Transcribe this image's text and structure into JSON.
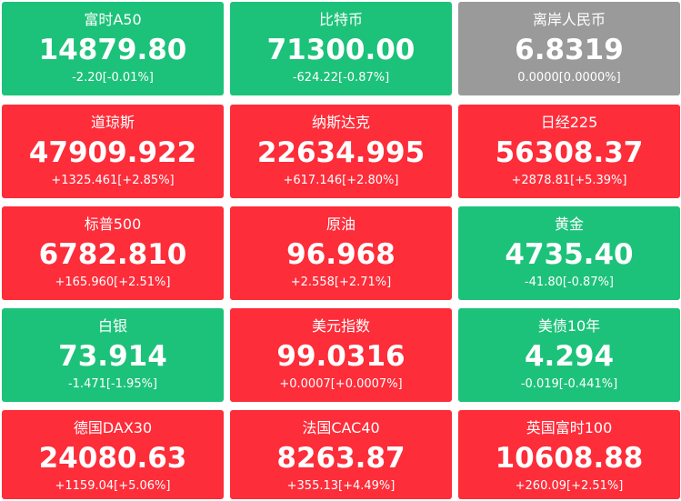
{
  "tiles": [
    {
      "name": "富时A50",
      "price": "14879.80",
      "change": "-2.20[-0.01%]",
      "trend": "down"
    },
    {
      "name": "比特币",
      "price": "71300.00",
      "change": "-624.22[-0.87%]",
      "trend": "down"
    },
    {
      "name": "离岸人民币",
      "price": "6.8319",
      "change": "0.0000[0.0000%]",
      "trend": "flat"
    },
    {
      "name": "道琼斯",
      "price": "47909.922",
      "change": "+1325.461[+2.85%]",
      "trend": "up"
    },
    {
      "name": "纳斯达克",
      "price": "22634.995",
      "change": "+617.146[+2.80%]",
      "trend": "up"
    },
    {
      "name": "日经225",
      "price": "56308.37",
      "change": "+2878.81[+5.39%]",
      "trend": "up"
    },
    {
      "name": "标普500",
      "price": "6782.810",
      "change": "+165.960[+2.51%]",
      "trend": "up"
    },
    {
      "name": "原油",
      "price": "96.968",
      "change": "+2.558[+2.71%]",
      "trend": "up"
    },
    {
      "name": "黄金",
      "price": "4735.40",
      "change": "-41.80[-0.87%]",
      "trend": "down"
    },
    {
      "name": "白银",
      "price": "73.914",
      "change": "-1.471[-1.95%]",
      "trend": "down"
    },
    {
      "name": "美元指数",
      "price": "99.0316",
      "change": "+0.0007[+0.0007%]",
      "trend": "up"
    },
    {
      "name": "美债10年",
      "price": "4.294",
      "change": "-0.019[-0.441%]",
      "trend": "down"
    },
    {
      "name": "德国DAX30",
      "price": "24080.63",
      "change": "+1159.04[+5.06%]",
      "trend": "up"
    },
    {
      "name": "法国CAC40",
      "price": "8263.87",
      "change": "+355.13[+4.49%]",
      "trend": "up"
    },
    {
      "name": "英国富时100",
      "price": "10608.88",
      "change": "+260.09[+2.51%]",
      "trend": "up"
    }
  ],
  "colors": {
    "up": "#fd2d3a",
    "down": "#1dc27a",
    "flat": "#9a9a9a"
  }
}
